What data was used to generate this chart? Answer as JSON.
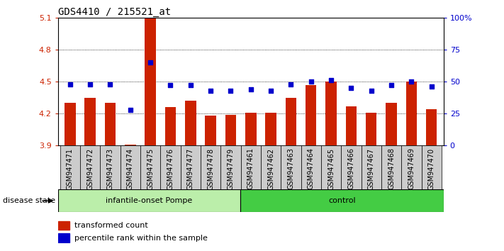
{
  "title": "GDS4410 / 215521_at",
  "samples": [
    "GSM947471",
    "GSM947472",
    "GSM947473",
    "GSM947474",
    "GSM947475",
    "GSM947476",
    "GSM947477",
    "GSM947478",
    "GSM947479",
    "GSM947461",
    "GSM947462",
    "GSM947463",
    "GSM947464",
    "GSM947465",
    "GSM947466",
    "GSM947467",
    "GSM947468",
    "GSM947469",
    "GSM947470"
  ],
  "transformed_count": [
    4.3,
    4.35,
    4.3,
    3.91,
    5.09,
    4.26,
    4.32,
    4.18,
    4.19,
    4.21,
    4.21,
    4.35,
    4.47,
    4.5,
    4.27,
    4.21,
    4.3,
    4.5,
    4.24
  ],
  "percentile_rank": [
    48,
    48,
    48,
    28,
    65,
    47,
    47,
    43,
    43,
    44,
    43,
    48,
    50,
    51,
    45,
    43,
    47,
    50,
    46
  ],
  "group": [
    "infantile-onset Pompe",
    "infantile-onset Pompe",
    "infantile-onset Pompe",
    "infantile-onset Pompe",
    "infantile-onset Pompe",
    "infantile-onset Pompe",
    "infantile-onset Pompe",
    "infantile-onset Pompe",
    "infantile-onset Pompe",
    "control",
    "control",
    "control",
    "control",
    "control",
    "control",
    "control",
    "control",
    "control",
    "control"
  ],
  "ylim": [
    3.9,
    5.1
  ],
  "yticks": [
    3.9,
    4.2,
    4.5,
    4.8,
    5.1
  ],
  "y2ticks": [
    0,
    25,
    50,
    75,
    100
  ],
  "bar_color": "#cc2200",
  "dot_color": "#0000cc",
  "group1_color": "#bbeeaa",
  "group2_color": "#44cc44",
  "group1_label": "infantile-onset Pompe",
  "group2_label": "control",
  "legend_bar": "transformed count",
  "legend_dot": "percentile rank within the sample",
  "disease_state_label": "disease state",
  "xtick_bg_color": "#cccccc",
  "pompe_count": 9,
  "control_count": 10
}
